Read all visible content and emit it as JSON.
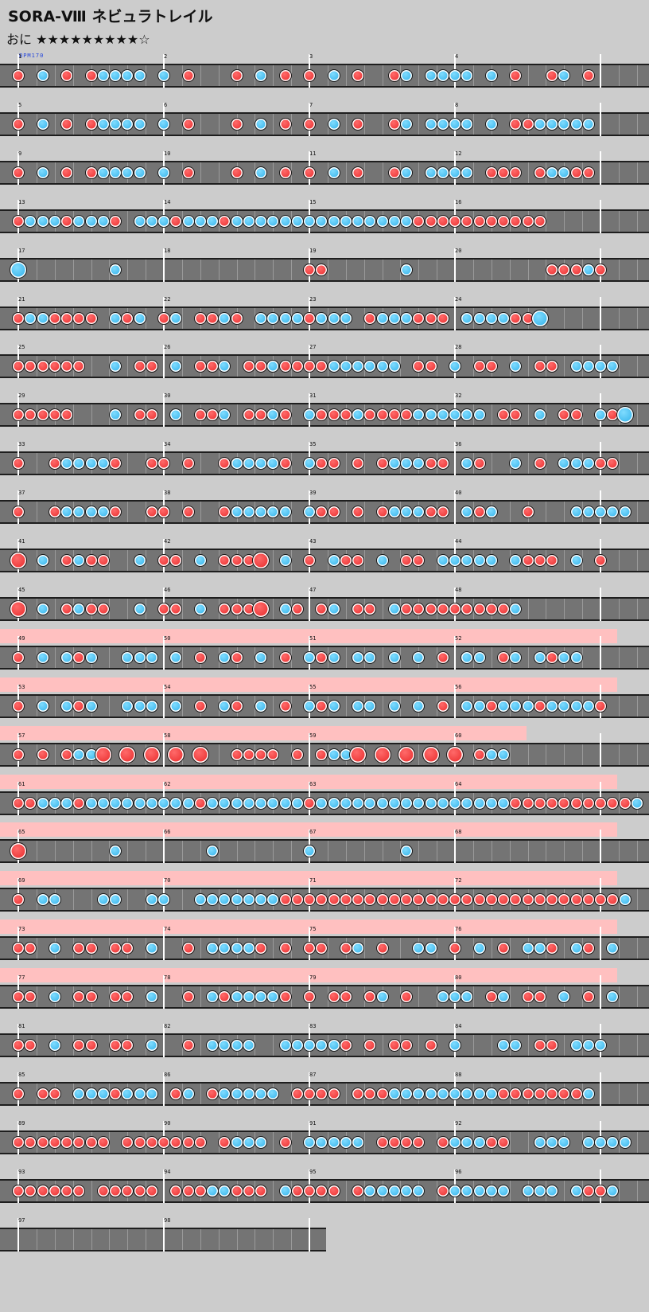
{
  "song": {
    "title": "SORA-Ⅷ ネビュラトレイル",
    "difficulty_label": "おに",
    "stars": "★★★★★★★★★☆",
    "bpm_label": "BPM170"
  },
  "chart_data": {
    "type": "drum-notation",
    "measures_per_row": 4,
    "gogo_rows": [
      13,
      14,
      15,
      16,
      17,
      18,
      19,
      20
    ],
    "measure_numbers": [
      "1",
      "2",
      "3",
      "4",
      "5",
      "6",
      "7",
      "8",
      "9",
      "10",
      "11",
      "12",
      "13",
      "14",
      "15",
      "16",
      "17",
      "18",
      "19",
      "20",
      "21",
      "22",
      "23",
      "24",
      "25",
      "26",
      "27",
      "28",
      "29",
      "30",
      "31",
      "32",
      "33",
      "34",
      "35",
      "36",
      "37",
      "38",
      "39",
      "40",
      "41",
      "42",
      "43",
      "44",
      "45",
      "46",
      "47",
      "48",
      "49",
      "50",
      "51",
      "52",
      "53",
      "54",
      "55",
      "56",
      "57",
      "58",
      "59",
      "60",
      "61",
      "62",
      "63",
      "64",
      "65",
      "66",
      "67",
      "68",
      "69",
      "70",
      "71",
      "72",
      "73",
      "74",
      "75",
      "76",
      "77",
      "78",
      "79",
      "80",
      "81",
      "82",
      "83",
      "84",
      "85",
      "86",
      "87",
      "88",
      "89",
      "90",
      "91",
      "92",
      "93",
      "94",
      "95",
      "96",
      "97",
      "98"
    ],
    "rows": [
      "d.k.d.dkkkk.k.d...d.k.d.d.k.d..dk.kkkk.k.d..dk.d.",
      "d.k.d.dkkkk.k.d...d.k.d.d.k.d..dk.kkkk.k.ddkkkkk.",
      "d.k.d.dkkkk.k.d...d.k.d.d.k.d..dk.kkkk.ddd.dkkdd.",
      "dkkkdkkkd.kkkdkkkdkkkkkkkkkkkkkkkddddddddddd......",
      "K.......k...............dd......k...........dddkd.",
      "dkkdddd.kdk.dk.ddkd.kkkkdkkk.dkkkddd.kkkkddK......",
      "dddddd..k.dd.k.ddk.ddkddddkkkkkk.dd.k.dd.k.dd.kkkk",
      "ddddd...k.dd.k.ddk.ddkd.kdddkddddkkkkkk.dd.k.dd.kdK",
      "d..dkkkkd..dd.d..dkkkkd.kdd.d.dkkkdd.kd..k.d.kkkdd",
      "d..dkkkkd..dd.d..dkkkkk.kdd.d.dkkkdd.kdk..d...kkkkk",
      "D.k.dkdd..k.dd.k.dddD.k.d.kdd.k.dd.kkkkk.kddd.k.d.",
      "D.k.dkdd..k.dd.k.dddD.kd.dk.dd.kdddddddddk.......",
      "d.k.kdk..kkk.k.d.kd.k.d.kdk.kk.k.k.d.kk.dk.kdkk..",
      "d.k.kdk..kkk.k.d.kd.k.d.kdk.kk.k.k.d.kkdkkkdkkkkd",
      "d.d.dkkD.D.D.D.D..dddd.d.dkkD.D.D.D.D.dkk.........",
      "ddkkkdkkkkkkkkkdkkkkkkkkdkkkkkkkkkkkkkkkkddddddddddk",
      "D.......k.......k.......k.......k...................",
      "d.kk...kk..kk..kkkkkkkddddddddddddddddddddddddddddk",
      "dd.k.dd.dd.k..d.kkkkd.d.dd.dk.d..kk.d.k.d.kkd.kd.k",
      "dd.k.dd.dd.k..d.kdkkkkd.d.dd.dk.d..kkk.dk.dd.k.d.k",
      "dd.k.dd.dd.k..d.kkkk..kkkkkd.d.dd.d.k...kk.dd.kkk.",
      "d.dd.kkkdkkk.dk.dkkkkk.dddd.dddkkkkkkkkkdddddddk..",
      "dddddddd.ddddddd.dkkk.d.kkkkk.dddd.dkkkdd..kkk.kkkk",
      "dddddd.ddddd.dddkkddd.kdddd.dkkkkk.dkkkkk.kkk.kddk",
      "....................................................."
    ]
  }
}
